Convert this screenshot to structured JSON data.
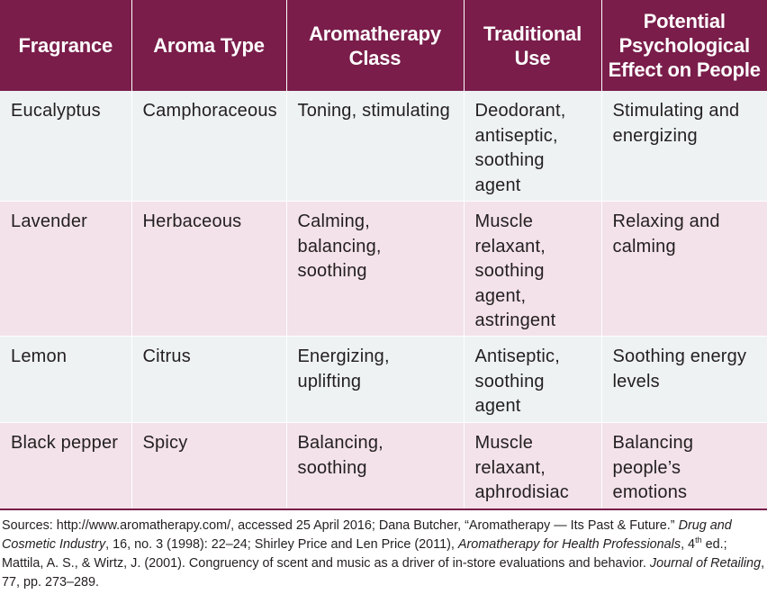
{
  "table": {
    "headers": [
      "Fragrance",
      "Aroma Type",
      "Aromatherapy Class",
      "Traditional Use",
      "Potential Psychological Effect on People"
    ],
    "header_lines": [
      [
        "Fragrance"
      ],
      [
        "Aroma Type"
      ],
      [
        "Aromatherapy",
        "Class"
      ],
      [
        "Traditional",
        "Use"
      ],
      [
        "Potential",
        "Psychological",
        "Effect on People"
      ]
    ],
    "rows": [
      {
        "fragrance": "Eucalyptus",
        "aroma_type": "Camphoraceous",
        "aromatherapy_class": [
          "Toning, stimulating"
        ],
        "traditional_use": [
          "Deodorant,",
          "antiseptic,",
          "soothing",
          "agent"
        ],
        "effect": [
          "Stimulating and",
          "energizing"
        ]
      },
      {
        "fragrance": "Lavender",
        "aroma_type": "Herbaceous",
        "aromatherapy_class": [
          "Calming, balancing,",
          "soothing"
        ],
        "traditional_use": [
          "Muscle",
          "relaxant,",
          "soothing",
          "agent,",
          "astringent"
        ],
        "effect": [
          "Relaxing and",
          "calming"
        ]
      },
      {
        "fragrance": "Lemon",
        "aroma_type": "Citrus",
        "aromatherapy_class": [
          "Energizing,",
          "uplifting"
        ],
        "traditional_use": [
          "Antiseptic,",
          "soothing",
          "agent"
        ],
        "effect": [
          "Soothing energy",
          "levels"
        ]
      },
      {
        "fragrance": "Black pepper",
        "aroma_type": "Spicy",
        "aromatherapy_class": [
          "Balancing,",
          "soothing"
        ],
        "traditional_use": [
          "Muscle",
          "relaxant,",
          "aphrodisiac"
        ],
        "effect": [
          "Balancing people’s",
          "emotions"
        ]
      }
    ]
  },
  "sources": {
    "s1": "Sources: http://www.aromatherapy.com/, accessed 25 April 2016; Dana Butcher, “Aromatherapy — Its Past & Future.” ",
    "s1_italic": "Drug and Cosmetic Industry",
    "s2": ", 16, no. 3 (1998): 22–24; Shirley Price and Len Price (2011), ",
    "s2_italic": "Aromatherapy for Health Professionals",
    "s3": ", 4",
    "s3_sup": "th",
    "s4": " ed.; Mattila, A. S., & Wirtz, J. (2001). Congruency of scent and music as a driver of in-store evaluations and behavior. ",
    "s4_italic": "Journal of Retailing",
    "s5": ", 77, pp. 273–289."
  },
  "colors": {
    "header_bg": "#7a1d4a",
    "row_light_bg": "#eef2f3",
    "row_pink_bg": "#f3e2e9"
  }
}
